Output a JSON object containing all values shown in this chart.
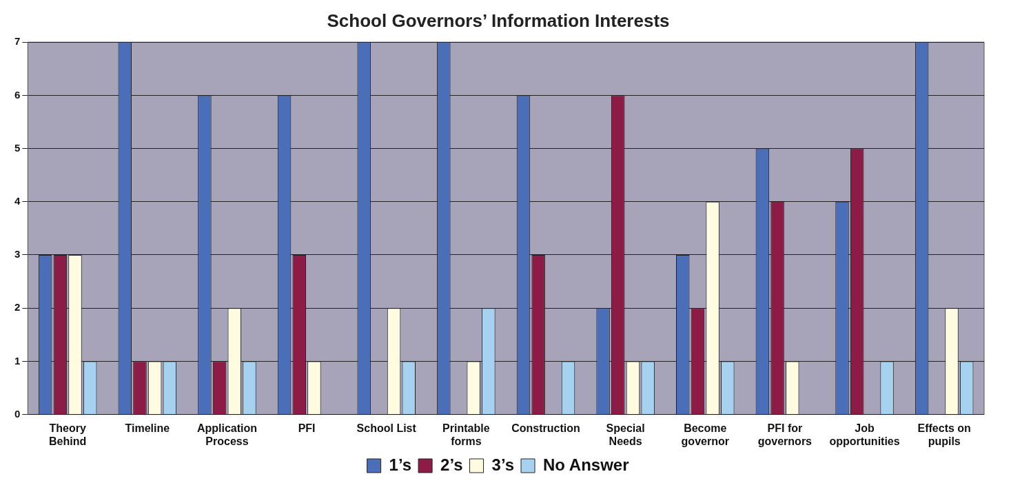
{
  "chart_data": {
    "type": "bar",
    "title": "School Governors’ Information Interests",
    "categories": [
      "Theory Behind",
      "Timeline",
      "Application Process",
      "PFI",
      "School List",
      "Printable forms",
      "Construction",
      "Special Needs",
      "Become governor",
      "PFI for governors",
      "Job opportunities",
      "Effects on pupils"
    ],
    "series": [
      {
        "name": "1’s",
        "color": "#4a6fb8",
        "values": [
          3,
          7,
          6,
          6,
          7,
          7,
          6,
          2,
          3,
          5,
          4,
          7
        ]
      },
      {
        "name": "2’s",
        "color": "#8c1c45",
        "values": [
          3,
          1,
          1,
          3,
          0,
          0,
          3,
          6,
          2,
          4,
          5,
          0
        ]
      },
      {
        "name": "3’s",
        "color": "#fffbe0",
        "values": [
          3,
          1,
          2,
          1,
          2,
          1,
          0,
          1,
          4,
          1,
          0,
          2
        ]
      },
      {
        "name": "No Answer",
        "color": "#a6d2f0",
        "values": [
          1,
          1,
          1,
          0,
          1,
          2,
          1,
          1,
          1,
          0,
          1,
          1
        ]
      }
    ],
    "ylim": [
      0,
      7
    ],
    "yticks": [
      0,
      1,
      2,
      3,
      4,
      5,
      6,
      7
    ],
    "grid": "y",
    "legend": "bottom"
  }
}
